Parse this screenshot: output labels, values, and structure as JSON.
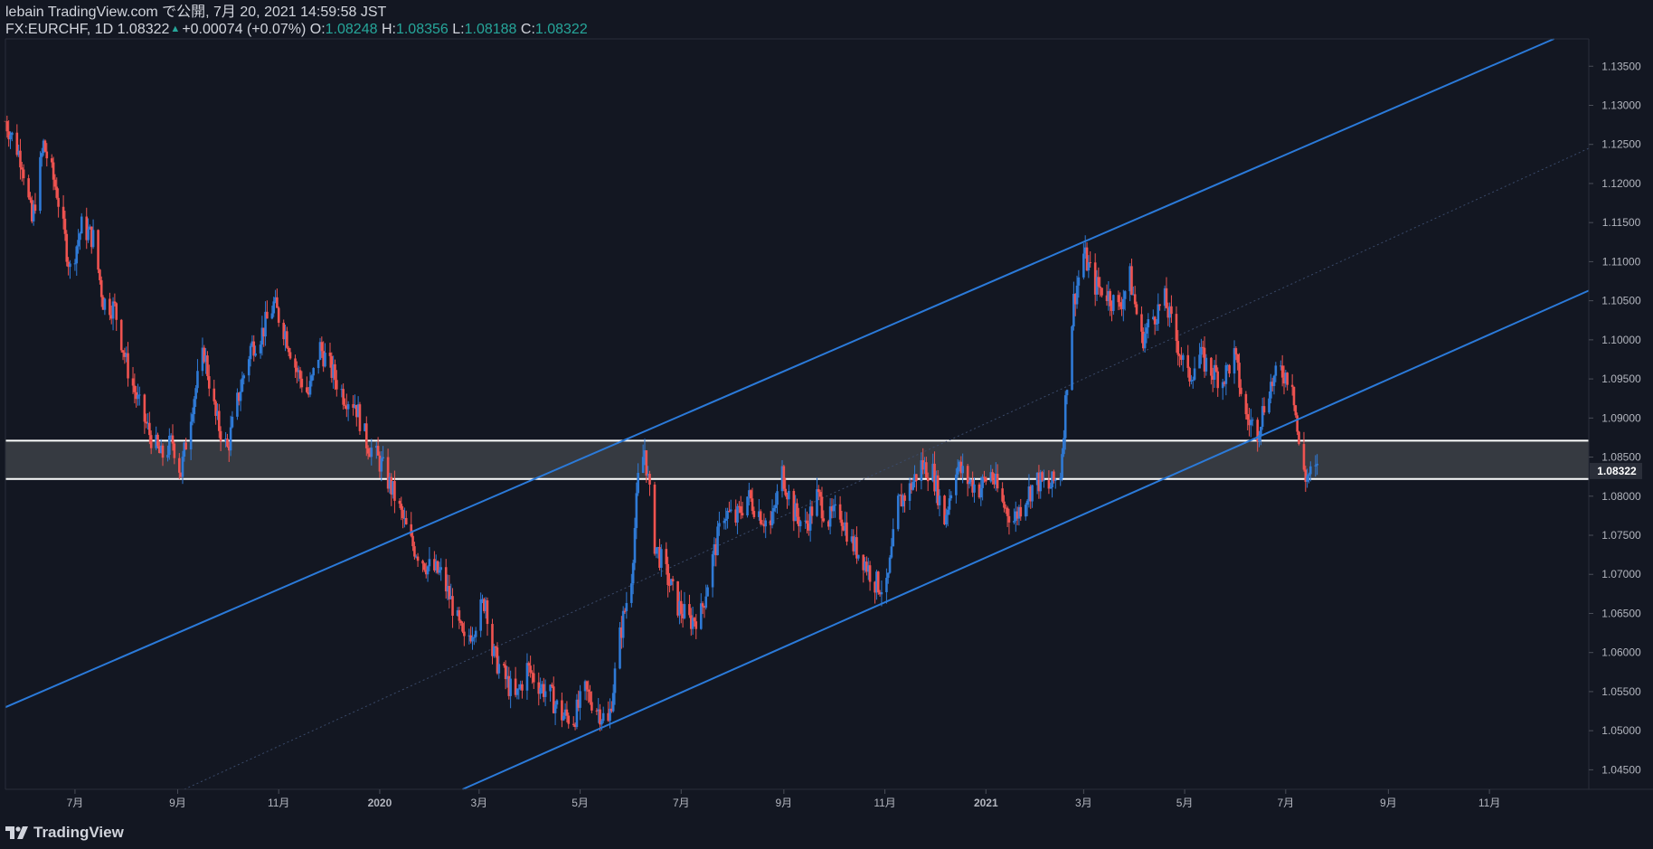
{
  "header": {
    "line1": "lebain TradingView.com で公開, 7月 20, 2021 14:59:58 JST",
    "symbol": "FX:EURCHF, 1D",
    "last": "1.08322",
    "change": "+0.00074 (+0.07%)",
    "o_label": "O:",
    "o_value": "1.08248",
    "h_label": "H:",
    "h_value": "1.08356",
    "l_label": "L:",
    "l_value": "1.08188",
    "c_label": "C:",
    "c_value": "1.08322"
  },
  "brand": {
    "name": "TradingView",
    "icon": "tradingview-logo-icon"
  },
  "colors": {
    "up": "#2f7ad6",
    "down": "#ef5350",
    "channel": "#2b7ad9",
    "zone": "#3b3e45",
    "bg": "#131722"
  },
  "chart_data": {
    "type": "candlestick",
    "symbol": "FX:EURCHF",
    "interval": "1D",
    "ylim": [
      1.0425,
      1.1385
    ],
    "y_ticks": [
      "1.13500",
      "1.13000",
      "1.12500",
      "1.12000",
      "1.11500",
      "1.11000",
      "1.10500",
      "1.10000",
      "1.09500",
      "1.09000",
      "1.08500",
      "1.08000",
      "1.07500",
      "1.07000",
      "1.06500",
      "1.06000",
      "1.05500",
      "1.05000",
      "1.04500"
    ],
    "x_ticks": [
      "7月",
      "9月",
      "11月",
      "2020",
      "3月",
      "5月",
      "7月",
      "9月",
      "11月",
      "2021",
      "3月",
      "5月",
      "7月",
      "9月",
      "11月"
    ],
    "x_tick_dates": [
      "2019-07",
      "2019-09",
      "2019-11",
      "2020-01",
      "2020-03",
      "2020-05",
      "2020-07",
      "2020-09",
      "2020-11",
      "2021-01",
      "2021-03",
      "2021-05",
      "2021-07",
      "2021-09",
      "2021-11"
    ],
    "last_price_label": "1.08322",
    "last_price": 1.08322,
    "support_zone": [
      1.0822,
      1.0871
    ],
    "channel": {
      "upper": [
        [
          "2019-05-20",
          1.053
        ],
        [
          "2021-12-10",
          1.1385
        ]
      ],
      "lower": [
        [
          "2020-02-20",
          1.0425
        ],
        [
          "2021-12-31",
          1.1063
        ]
      ],
      "mid": [
        [
          "2019-09-05",
          1.0425
        ],
        [
          "2021-12-31",
          1.1245
        ]
      ]
    },
    "price_path": [
      [
        "2019-05-20",
        1.128
      ],
      [
        "2019-05-30",
        1.123
      ],
      [
        "2019-06-05",
        1.115
      ],
      [
        "2019-06-12",
        1.125
      ],
      [
        "2019-06-20",
        1.119
      ],
      [
        "2019-06-28",
        1.109
      ],
      [
        "2019-07-05",
        1.1145
      ],
      [
        "2019-07-12",
        1.113
      ],
      [
        "2019-07-18",
        1.105
      ],
      [
        "2019-07-25",
        1.104
      ],
      [
        "2019-08-01",
        1.097
      ],
      [
        "2019-08-08",
        1.092
      ],
      [
        "2019-08-15",
        1.088
      ],
      [
        "2019-08-22",
        1.085
      ],
      [
        "2019-08-29",
        1.087
      ],
      [
        "2019-09-03",
        1.083
      ],
      [
        "2019-09-10",
        1.092
      ],
      [
        "2019-09-17",
        1.0985
      ],
      [
        "2019-09-24",
        1.09
      ],
      [
        "2019-10-01",
        1.086
      ],
      [
        "2019-10-08",
        1.093
      ],
      [
        "2019-10-15",
        1.099
      ],
      [
        "2019-10-22",
        1.101
      ],
      [
        "2019-10-29",
        1.1045
      ],
      [
        "2019-11-05",
        1.101
      ],
      [
        "2019-11-12",
        1.096
      ],
      [
        "2019-11-19",
        1.093
      ],
      [
        "2019-11-26",
        1.099
      ],
      [
        "2019-12-03",
        1.096
      ],
      [
        "2019-12-10",
        1.093
      ],
      [
        "2019-12-17",
        1.092
      ],
      [
        "2019-12-24",
        1.087
      ],
      [
        "2020-01-02",
        1.084
      ],
      [
        "2020-01-10",
        1.08
      ],
      [
        "2020-01-20",
        1.074
      ],
      [
        "2020-01-30",
        1.071
      ],
      [
        "2020-02-07",
        1.07
      ],
      [
        "2020-02-14",
        1.066
      ],
      [
        "2020-02-21",
        1.061
      ],
      [
        "2020-02-28",
        1.064
      ],
      [
        "2020-03-05",
        1.067
      ],
      [
        "2020-03-09",
        1.06
      ],
      [
        "2020-03-16",
        1.057
      ],
      [
        "2020-03-23",
        1.054
      ],
      [
        "2020-03-30",
        1.058
      ],
      [
        "2020-04-06",
        1.056
      ],
      [
        "2020-04-13",
        1.0545
      ],
      [
        "2020-04-20",
        1.052
      ],
      [
        "2020-04-27",
        1.0515
      ],
      [
        "2020-05-04",
        1.055
      ],
      [
        "2020-05-11",
        1.053
      ],
      [
        "2020-05-18",
        1.0508
      ],
      [
        "2020-05-25",
        1.062
      ],
      [
        "2020-06-01",
        1.07
      ],
      [
        "2020-06-05",
        1.082
      ],
      [
        "2020-06-09",
        1.086
      ],
      [
        "2020-06-15",
        1.074
      ],
      [
        "2020-06-22",
        1.07
      ],
      [
        "2020-06-29",
        1.066
      ],
      [
        "2020-07-06",
        1.064
      ],
      [
        "2020-07-13",
        1.065
      ],
      [
        "2020-07-20",
        1.072
      ],
      [
        "2020-07-27",
        1.078
      ],
      [
        "2020-08-03",
        1.077
      ],
      [
        "2020-08-10",
        1.08
      ],
      [
        "2020-08-17",
        1.078
      ],
      [
        "2020-08-24",
        1.076
      ],
      [
        "2020-08-31",
        1.083
      ],
      [
        "2020-09-07",
        1.078
      ],
      [
        "2020-09-14",
        1.076
      ],
      [
        "2020-09-21",
        1.08
      ],
      [
        "2020-09-28",
        1.077
      ],
      [
        "2020-10-05",
        1.078
      ],
      [
        "2020-10-12",
        1.074
      ],
      [
        "2020-10-19",
        1.072
      ],
      [
        "2020-10-26",
        1.069
      ],
      [
        "2020-11-02",
        1.068
      ],
      [
        "2020-11-09",
        1.079
      ],
      [
        "2020-11-16",
        1.081
      ],
      [
        "2020-11-23",
        1.084
      ],
      [
        "2020-11-30",
        1.083
      ],
      [
        "2020-12-07",
        1.077
      ],
      [
        "2020-12-14",
        1.084
      ],
      [
        "2020-12-21",
        1.082
      ],
      [
        "2020-12-28",
        1.081
      ],
      [
        "2021-01-04",
        1.083
      ],
      [
        "2021-01-11",
        1.079
      ],
      [
        "2021-01-18",
        1.077
      ],
      [
        "2021-01-25",
        1.08
      ],
      [
        "2021-02-01",
        1.082
      ],
      [
        "2021-02-08",
        1.081
      ],
      [
        "2021-02-15",
        1.083
      ],
      [
        "2021-02-19",
        1.095
      ],
      [
        "2021-02-23",
        1.105
      ],
      [
        "2021-03-01",
        1.111
      ],
      [
        "2021-03-08",
        1.107
      ],
      [
        "2021-03-15",
        1.106
      ],
      [
        "2021-03-22",
        1.104
      ],
      [
        "2021-03-29",
        1.108
      ],
      [
        "2021-04-05",
        1.1
      ],
      [
        "2021-04-12",
        1.103
      ],
      [
        "2021-04-19",
        1.105
      ],
      [
        "2021-04-26",
        1.1
      ],
      [
        "2021-05-03",
        1.095
      ],
      [
        "2021-05-10",
        1.098
      ],
      [
        "2021-05-17",
        1.096
      ],
      [
        "2021-05-24",
        1.095
      ],
      [
        "2021-05-31",
        1.098
      ],
      [
        "2021-06-07",
        1.09
      ],
      [
        "2021-06-14",
        1.0885
      ],
      [
        "2021-06-21",
        1.094
      ],
      [
        "2021-06-28",
        1.096
      ],
      [
        "2021-07-05",
        1.095
      ],
      [
        "2021-07-09",
        1.086
      ],
      [
        "2021-07-13",
        1.0825
      ],
      [
        "2021-07-20",
        1.0832
      ]
    ]
  }
}
